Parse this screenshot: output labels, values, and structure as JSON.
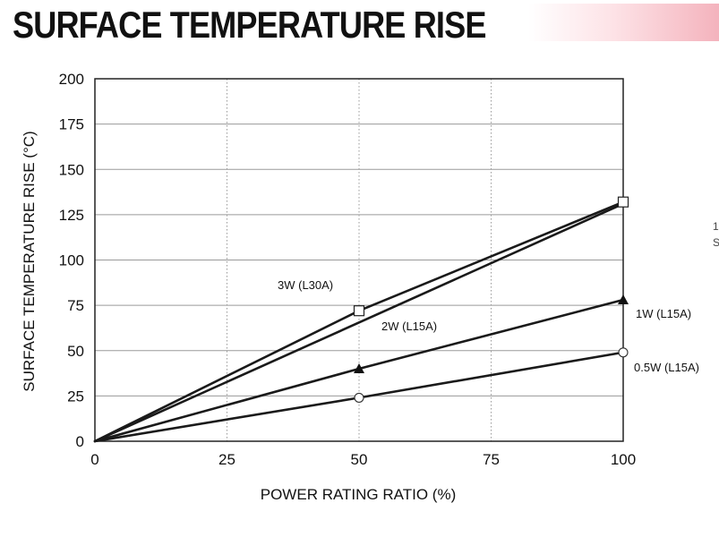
{
  "header": {
    "title": "SURFACE TEMPERATURE RISE"
  },
  "colors": {
    "text": "#111111",
    "grid": "#9a9a9a",
    "line": "#1a1a1a",
    "band_accent": "#f4b3bd"
  },
  "chart_data": {
    "type": "line",
    "title": "SURFACE TEMPERATURE RISE",
    "xlabel": "POWER RATING RATIO (%)",
    "ylabel": "SURFACE TEMPERATURE RISE (°C)",
    "xlim": [
      0,
      100
    ],
    "ylim": [
      0,
      200
    ],
    "x_ticks": [
      "0",
      "25",
      "50",
      "75",
      "100"
    ],
    "y_ticks": [
      "0",
      "25",
      "50",
      "75",
      "100",
      "125",
      "150",
      "175",
      "200"
    ],
    "grid": true,
    "series": [
      {
        "name": "3W (L30A)",
        "marker": "none",
        "x": [
          0,
          100
        ],
        "y": [
          0,
          131
        ]
      },
      {
        "name": "2W (L15A)",
        "marker": "square-open",
        "x": [
          0,
          50,
          100
        ],
        "y": [
          0,
          72,
          132
        ]
      },
      {
        "name": "1W (L15A)",
        "marker": "triangle-filled",
        "x": [
          0,
          50,
          100
        ],
        "y": [
          0,
          40,
          78
        ]
      },
      {
        "name": "0.5W (L15A)",
        "marker": "circle-open",
        "x": [
          0,
          50,
          100
        ],
        "y": [
          0,
          24,
          49
        ]
      }
    ]
  }
}
